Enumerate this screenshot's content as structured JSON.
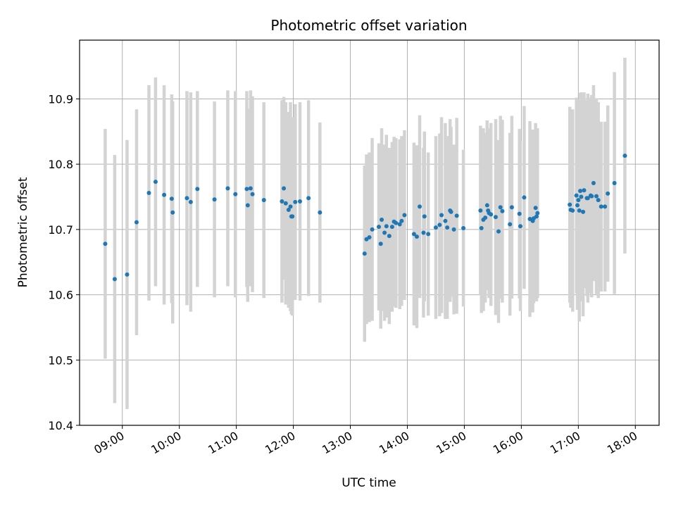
{
  "chart_data": {
    "type": "scatter",
    "title": "Photometric offset variation",
    "xlabel": "UTC time",
    "ylabel": "Photometric offset",
    "xlim": [
      "08:15",
      "18:25"
    ],
    "ylim": [
      10.4,
      10.99
    ],
    "yticks": [
      10.4,
      10.5,
      10.6,
      10.7,
      10.8,
      10.9
    ],
    "ytick_labels": [
      "10.4",
      "10.5",
      "10.6",
      "10.7",
      "10.8",
      "10.9"
    ],
    "xticks": [
      "09:00",
      "10:00",
      "11:00",
      "12:00",
      "13:00",
      "14:00",
      "15:00",
      "16:00",
      "17:00",
      "18:00"
    ],
    "xtick_labels": [
      "09:00",
      "10:00",
      "11:00",
      "12:00",
      "13:00",
      "14:00",
      "15:00",
      "16:00",
      "17:00",
      "18:00"
    ],
    "grid": true,
    "colors": {
      "point": "#1f77b4",
      "errorbar": "#d3d3d3",
      "grid": "#b0b0b0"
    },
    "points": [
      {
        "t": "08:42",
        "y": 10.678,
        "err": 0.176
      },
      {
        "t": "08:52",
        "y": 10.624,
        "err": 0.19
      },
      {
        "t": "09:05",
        "y": 10.631,
        "err": 0.206
      },
      {
        "t": "09:15",
        "y": 10.711,
        "err": 0.173
      },
      {
        "t": "09:28",
        "y": 10.756,
        "err": 0.165
      },
      {
        "t": "09:35",
        "y": 10.773,
        "err": 0.16
      },
      {
        "t": "09:44",
        "y": 10.753,
        "err": 0.168
      },
      {
        "t": "09:52",
        "y": 10.747,
        "err": 0.16
      },
      {
        "t": "09:53",
        "y": 10.726,
        "err": 0.17
      },
      {
        "t": "10:08",
        "y": 10.748,
        "err": 0.164
      },
      {
        "t": "10:12",
        "y": 10.742,
        "err": 0.168
      },
      {
        "t": "10:19",
        "y": 10.762,
        "err": 0.15
      },
      {
        "t": "10:37",
        "y": 10.746,
        "err": 0.15
      },
      {
        "t": "10:51",
        "y": 10.763,
        "err": 0.15
      },
      {
        "t": "10:59",
        "y": 10.754,
        "err": 0.158
      },
      {
        "t": "11:11",
        "y": 10.762,
        "err": 0.15
      },
      {
        "t": "11:12",
        "y": 10.737,
        "err": 0.148
      },
      {
        "t": "11:15",
        "y": 10.763,
        "err": 0.15
      },
      {
        "t": "11:17",
        "y": 10.754,
        "err": 0.15
      },
      {
        "t": "11:29",
        "y": 10.745,
        "err": 0.15
      },
      {
        "t": "11:48",
        "y": 10.743,
        "err": 0.155
      },
      {
        "t": "11:50",
        "y": 10.763,
        "err": 0.14
      },
      {
        "t": "11:52",
        "y": 10.74,
        "err": 0.155
      },
      {
        "t": "11:55",
        "y": 10.73,
        "err": 0.15
      },
      {
        "t": "11:57",
        "y": 10.735,
        "err": 0.16
      },
      {
        "t": "11:58",
        "y": 10.72,
        "err": 0.15
      },
      {
        "t": "11:59",
        "y": 10.72,
        "err": 0.152
      },
      {
        "t": "12:02",
        "y": 10.742,
        "err": 0.15
      },
      {
        "t": "12:07",
        "y": 10.743,
        "err": 0.152
      },
      {
        "t": "12:16",
        "y": 10.748,
        "err": 0.15
      },
      {
        "t": "12:28",
        "y": 10.726,
        "err": 0.138
      },
      {
        "t": "13:15",
        "y": 10.663,
        "err": 0.135
      },
      {
        "t": "13:17",
        "y": 10.685,
        "err": 0.13
      },
      {
        "t": "13:20",
        "y": 10.688,
        "err": 0.13
      },
      {
        "t": "13:23",
        "y": 10.7,
        "err": 0.14
      },
      {
        "t": "13:30",
        "y": 10.704,
        "err": 0.128
      },
      {
        "t": "13:32",
        "y": 10.678,
        "err": 0.13
      },
      {
        "t": "13:33",
        "y": 10.715,
        "err": 0.14
      },
      {
        "t": "13:36",
        "y": 10.695,
        "err": 0.135
      },
      {
        "t": "13:38",
        "y": 10.705,
        "err": 0.14
      },
      {
        "t": "13:41",
        "y": 10.69,
        "err": 0.135
      },
      {
        "t": "13:44",
        "y": 10.704,
        "err": 0.13
      },
      {
        "t": "13:46",
        "y": 10.712,
        "err": 0.13
      },
      {
        "t": "13:48",
        "y": 10.71,
        "err": 0.13
      },
      {
        "t": "13:52",
        "y": 10.708,
        "err": 0.13
      },
      {
        "t": "13:54",
        "y": 10.713,
        "err": 0.13
      },
      {
        "t": "13:57",
        "y": 10.722,
        "err": 0.13
      },
      {
        "t": "14:07",
        "y": 10.693,
        "err": 0.14
      },
      {
        "t": "14:10",
        "y": 10.689,
        "err": 0.14
      },
      {
        "t": "14:13",
        "y": 10.735,
        "err": 0.14
      },
      {
        "t": "14:17",
        "y": 10.695,
        "err": 0.13
      },
      {
        "t": "14:18",
        "y": 10.72,
        "err": 0.13
      },
      {
        "t": "14:22",
        "y": 10.693,
        "err": 0.125
      },
      {
        "t": "14:30",
        "y": 10.703,
        "err": 0.14
      },
      {
        "t": "14:34",
        "y": 10.707,
        "err": 0.14
      },
      {
        "t": "14:36",
        "y": 10.722,
        "err": 0.15
      },
      {
        "t": "14:40",
        "y": 10.713,
        "err": 0.15
      },
      {
        "t": "14:42",
        "y": 10.703,
        "err": 0.14
      },
      {
        "t": "14:45",
        "y": 10.729,
        "err": 0.14
      },
      {
        "t": "14:46",
        "y": 10.727,
        "err": 0.13
      },
      {
        "t": "14:49",
        "y": 10.7,
        "err": 0.13
      },
      {
        "t": "14:52",
        "y": 10.721,
        "err": 0.15
      },
      {
        "t": "14:59",
        "y": 10.702,
        "err": 0.12
      },
      {
        "t": "15:17",
        "y": 10.729,
        "err": 0.13
      },
      {
        "t": "15:18",
        "y": 10.702,
        "err": 0.13
      },
      {
        "t": "15:20",
        "y": 10.715,
        "err": 0.14
      },
      {
        "t": "15:22",
        "y": 10.718,
        "err": 0.13
      },
      {
        "t": "15:24",
        "y": 10.737,
        "err": 0.13
      },
      {
        "t": "15:25",
        "y": 10.729,
        "err": 0.12
      },
      {
        "t": "15:26",
        "y": 10.725,
        "err": 0.13
      },
      {
        "t": "15:28",
        "y": 10.723,
        "err": 0.14
      },
      {
        "t": "15:33",
        "y": 10.719,
        "err": 0.15
      },
      {
        "t": "15:36",
        "y": 10.697,
        "err": 0.14
      },
      {
        "t": "15:38",
        "y": 10.734,
        "err": 0.14
      },
      {
        "t": "15:40",
        "y": 10.728,
        "err": 0.14
      },
      {
        "t": "15:48",
        "y": 10.708,
        "err": 0.14
      },
      {
        "t": "15:50",
        "y": 10.734,
        "err": 0.14
      },
      {
        "t": "15:58",
        "y": 10.724,
        "err": 0.13
      },
      {
        "t": "15:59",
        "y": 10.705,
        "err": 0.13
      },
      {
        "t": "16:03",
        "y": 10.749,
        "err": 0.14
      },
      {
        "t": "16:09",
        "y": 10.716,
        "err": 0.15
      },
      {
        "t": "16:12",
        "y": 10.713,
        "err": 0.14
      },
      {
        "t": "16:13",
        "y": 10.717,
        "err": 0.13
      },
      {
        "t": "16:15",
        "y": 10.733,
        "err": 0.13
      },
      {
        "t": "16:16",
        "y": 10.72,
        "err": 0.13
      },
      {
        "t": "16:17",
        "y": 10.725,
        "err": 0.13
      },
      {
        "t": "16:51",
        "y": 10.738,
        "err": 0.15
      },
      {
        "t": "16:52",
        "y": 10.73,
        "err": 0.15
      },
      {
        "t": "16:54",
        "y": 10.729,
        "err": 0.155
      },
      {
        "t": "16:58",
        "y": 10.752,
        "err": 0.15
      },
      {
        "t": "16:59",
        "y": 10.737,
        "err": 0.16
      },
      {
        "t": "17:00",
        "y": 10.745,
        "err": 0.155
      },
      {
        "t": "17:01",
        "y": 10.729,
        "err": 0.17
      },
      {
        "t": "17:02",
        "y": 10.759,
        "err": 0.15
      },
      {
        "t": "17:03",
        "y": 10.75,
        "err": 0.16
      },
      {
        "t": "17:05",
        "y": 10.727,
        "err": 0.16
      },
      {
        "t": "17:06",
        "y": 10.76,
        "err": 0.15
      },
      {
        "t": "17:09",
        "y": 10.748,
        "err": 0.15
      },
      {
        "t": "17:10",
        "y": 10.748,
        "err": 0.16
      },
      {
        "t": "17:13",
        "y": 10.752,
        "err": 0.15
      },
      {
        "t": "17:14",
        "y": 10.751,
        "err": 0.155
      },
      {
        "t": "17:16",
        "y": 10.771,
        "err": 0.15
      },
      {
        "t": "17:19",
        "y": 10.751,
        "err": 0.15
      },
      {
        "t": "17:21",
        "y": 10.745,
        "err": 0.15
      },
      {
        "t": "17:24",
        "y": 10.735,
        "err": 0.13
      },
      {
        "t": "17:28",
        "y": 10.735,
        "err": 0.13
      },
      {
        "t": "17:31",
        "y": 10.755,
        "err": 0.135
      },
      {
        "t": "17:38",
        "y": 10.771,
        "err": 0.17
      },
      {
        "t": "17:49",
        "y": 10.813,
        "err": 0.15
      }
    ]
  }
}
